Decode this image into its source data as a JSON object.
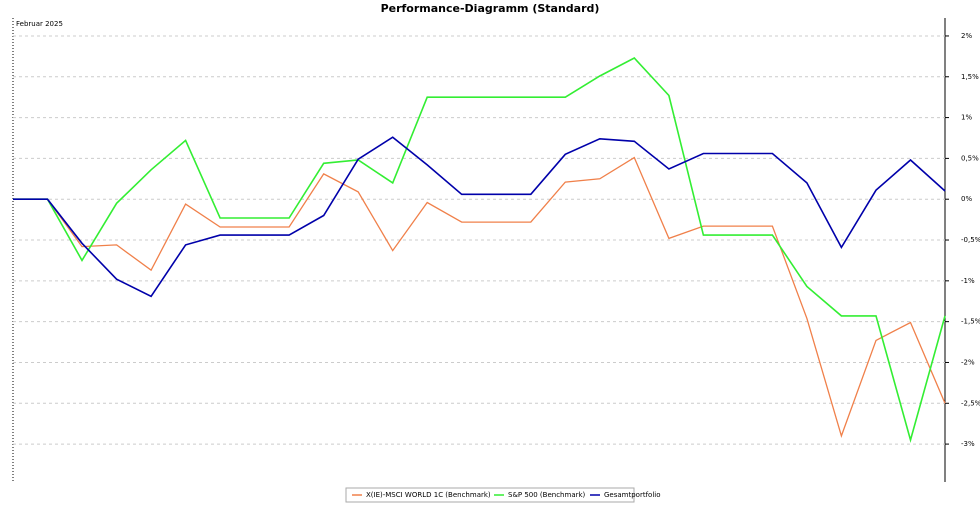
{
  "chart_data": {
    "type": "line",
    "title": "Performance-Diagramm (Standard)",
    "categories": [
      "Februar 2025",
      null,
      null,
      null,
      null,
      null,
      null,
      null,
      null,
      null,
      null,
      null,
      null,
      null,
      null,
      null,
      null,
      null,
      null,
      null,
      null,
      null,
      null,
      null,
      null,
      null,
      null,
      null
    ],
    "series": [
      {
        "name": "X(IE)-MSCI WORLD 1C (Benchmark)",
        "color": "#f0804a",
        "values": [
          0,
          0,
          -0.58,
          -0.56,
          -0.87,
          -0.06,
          -0.34,
          -0.34,
          -0.34,
          0.31,
          0.09,
          -0.63,
          -0.04,
          -0.28,
          -0.28,
          -0.28,
          0.21,
          0.25,
          0.51,
          -0.48,
          -0.33,
          -0.33,
          -0.33,
          -1.46,
          -2.9,
          -1.73,
          -1.51,
          -2.5
        ]
      },
      {
        "name": "S&P 500 (Benchmark)",
        "color": "#33ee33",
        "values": [
          0,
          0,
          -0.75,
          -0.05,
          0.36,
          0.72,
          -0.23,
          -0.23,
          -0.23,
          0.44,
          0.48,
          0.2,
          1.25,
          1.25,
          1.25,
          1.25,
          1.25,
          1.51,
          1.73,
          1.27,
          -0.44,
          -0.44,
          -0.44,
          -1.07,
          -1.43,
          -1.43,
          -2.95,
          -1.43
        ]
      },
      {
        "name": "Gesamtportfolio",
        "color": "#0000aa",
        "values": [
          0,
          0,
          -0.54,
          -0.98,
          -1.19,
          -0.56,
          -0.44,
          -0.44,
          -0.44,
          -0.2,
          0.49,
          0.76,
          0.42,
          0.06,
          0.06,
          0.06,
          0.55,
          0.74,
          0.71,
          0.37,
          0.56,
          0.56,
          0.56,
          0.2,
          -0.59,
          0.11,
          0.48,
          0.1
        ]
      }
    ],
    "ylim": [
      -3.44,
      2.22
    ],
    "yticks": [
      {
        "value": 2,
        "label": "2%"
      },
      {
        "value": 1.5,
        "label": "1,5%"
      },
      {
        "value": 1,
        "label": "1%"
      },
      {
        "value": 0.5,
        "label": "0,5%"
      },
      {
        "value": 0,
        "label": "0%"
      },
      {
        "value": -0.5,
        "label": "-0,5%"
      },
      {
        "value": -1,
        "label": "-1%"
      },
      {
        "value": -1.5,
        "label": "-1,5%"
      },
      {
        "value": -2,
        "label": "-2%"
      },
      {
        "value": -2.5,
        "label": "-2,5%"
      },
      {
        "value": -3,
        "label": "-3%"
      }
    ],
    "grid": true
  }
}
